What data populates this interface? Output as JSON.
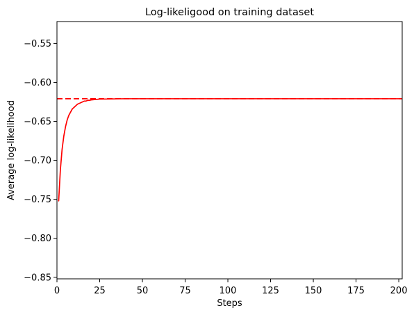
{
  "chart_data": {
    "type": "line",
    "title": "Log-likeligood on training dataset",
    "xlabel": "Steps",
    "ylabel": "Average log-likelihood",
    "xlim": [
      0,
      202
    ],
    "ylim": [
      -0.852,
      -0.522
    ],
    "xticks": [
      0,
      25,
      50,
      75,
      100,
      125,
      150,
      175,
      200
    ],
    "yticks": [
      -0.55,
      -0.6,
      -0.65,
      -0.7,
      -0.75,
      -0.8,
      -0.85
    ],
    "xtick_labels": [
      "0",
      "25",
      "50",
      "75",
      "100",
      "125",
      "150",
      "175",
      "200"
    ],
    "ytick_labels": [
      "−0.55",
      "−0.60",
      "−0.65",
      "−0.70",
      "−0.75",
      "−0.80",
      "−0.85"
    ],
    "grid": false,
    "series": [
      {
        "style": "solid",
        "color": "#ff0000",
        "x": [
          1,
          2,
          3,
          4,
          5,
          6,
          7,
          8,
          9,
          10,
          11,
          12,
          13,
          14,
          15,
          16,
          17,
          18,
          19,
          20,
          22,
          25,
          30,
          40,
          60,
          100,
          150,
          202
        ],
        "y": [
          -0.752,
          -0.712,
          -0.686,
          -0.669,
          -0.657,
          -0.648,
          -0.642,
          -0.638,
          -0.634,
          -0.632,
          -0.63,
          -0.628,
          -0.627,
          -0.626,
          -0.625,
          -0.624,
          -0.624,
          -0.623,
          -0.623,
          -0.6225,
          -0.622,
          -0.6215,
          -0.6213,
          -0.621,
          -0.621,
          -0.621,
          -0.621,
          -0.621
        ]
      }
    ],
    "reference_lines": [
      {
        "orientation": "horizontal",
        "y": -0.621,
        "style": "dashed",
        "color": "#ff0000"
      }
    ]
  }
}
